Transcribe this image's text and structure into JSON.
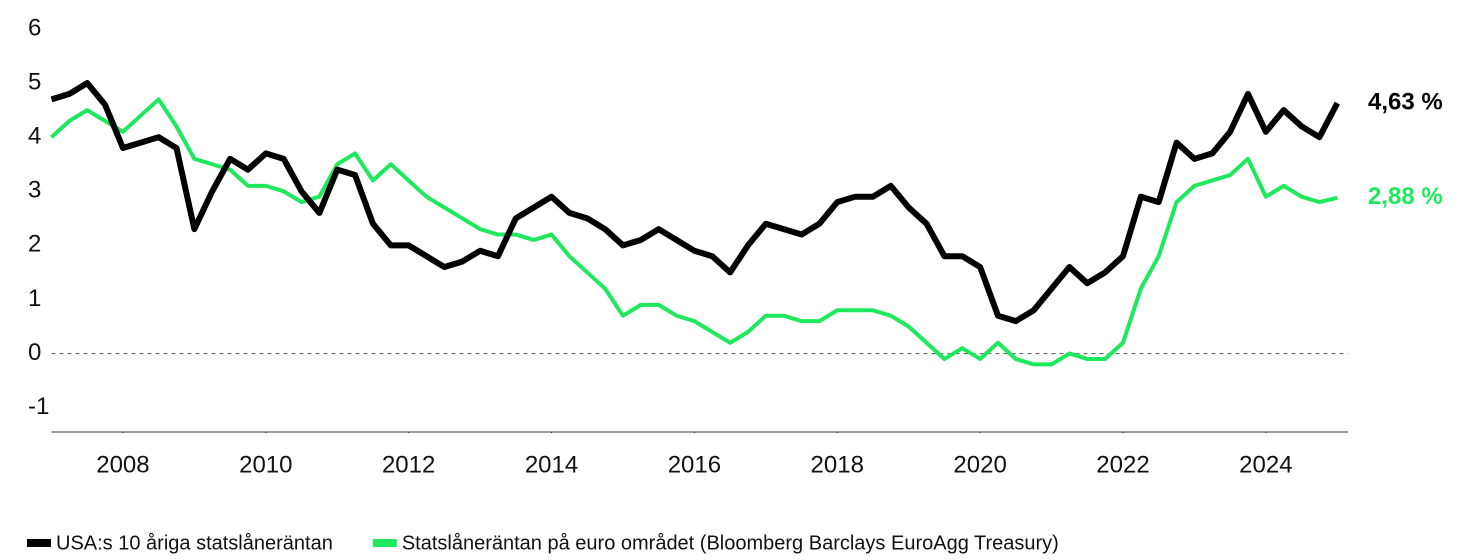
{
  "chart_data": {
    "type": "line",
    "x": [
      2007.0,
      2007.25,
      2007.5,
      2007.75,
      2008.0,
      2008.25,
      2008.5,
      2008.75,
      2009.0,
      2009.25,
      2009.5,
      2009.75,
      2010.0,
      2010.25,
      2010.5,
      2010.75,
      2011.0,
      2011.25,
      2011.5,
      2011.75,
      2012.0,
      2012.25,
      2012.5,
      2012.75,
      2013.0,
      2013.25,
      2013.5,
      2013.75,
      2014.0,
      2014.25,
      2014.5,
      2014.75,
      2015.0,
      2015.25,
      2015.5,
      2015.75,
      2016.0,
      2016.25,
      2016.5,
      2016.75,
      2017.0,
      2017.25,
      2017.5,
      2017.75,
      2018.0,
      2018.25,
      2018.5,
      2018.75,
      2019.0,
      2019.25,
      2019.5,
      2019.75,
      2020.0,
      2020.25,
      2020.5,
      2020.75,
      2021.0,
      2021.25,
      2021.5,
      2021.75,
      2022.0,
      2022.25,
      2022.5,
      2022.75,
      2023.0,
      2023.25,
      2023.5,
      2023.75,
      2024.0,
      2024.25,
      2024.5,
      2024.75,
      2025.0
    ],
    "series": [
      {
        "name": "USA:s 10 åriga statslåneräntan",
        "color": "#000000",
        "end_label": "4,63 %",
        "values": [
          4.7,
          4.8,
          5.0,
          4.6,
          3.8,
          3.9,
          4.0,
          3.8,
          2.3,
          3.0,
          3.6,
          3.4,
          3.7,
          3.6,
          3.0,
          2.6,
          3.4,
          3.3,
          2.4,
          2.0,
          2.0,
          1.8,
          1.6,
          1.7,
          1.9,
          1.8,
          2.5,
          2.7,
          2.9,
          2.6,
          2.5,
          2.3,
          2.0,
          2.1,
          2.3,
          2.1,
          1.9,
          1.8,
          1.5,
          2.0,
          2.4,
          2.3,
          2.2,
          2.4,
          2.8,
          2.9,
          2.9,
          3.1,
          2.7,
          2.4,
          1.8,
          1.8,
          1.6,
          0.7,
          0.6,
          0.8,
          1.2,
          1.6,
          1.3,
          1.5,
          1.8,
          2.9,
          2.8,
          3.9,
          3.6,
          3.7,
          4.1,
          4.8,
          4.1,
          4.5,
          4.2,
          4.0,
          4.63
        ]
      },
      {
        "name": "Statslåneräntan på euro området (Bloomberg Barclays EuroAgg Treasury)",
        "color": "#1ee85c",
        "end_label": "2,88 %",
        "values": [
          4.0,
          4.3,
          4.5,
          4.3,
          4.1,
          4.4,
          4.7,
          4.2,
          3.6,
          3.5,
          3.4,
          3.1,
          3.1,
          3.0,
          2.8,
          2.9,
          3.5,
          3.7,
          3.2,
          3.5,
          3.2,
          2.9,
          2.7,
          2.5,
          2.3,
          2.2,
          2.2,
          2.1,
          2.2,
          1.8,
          1.5,
          1.2,
          0.7,
          0.9,
          0.9,
          0.7,
          0.6,
          0.4,
          0.2,
          0.4,
          0.7,
          0.7,
          0.6,
          0.6,
          0.8,
          0.8,
          0.8,
          0.7,
          0.5,
          0.2,
          -0.1,
          0.1,
          -0.1,
          0.2,
          -0.1,
          -0.2,
          -0.2,
          0.0,
          -0.1,
          -0.1,
          0.2,
          1.2,
          1.8,
          2.8,
          3.1,
          3.2,
          3.3,
          3.6,
          2.9,
          3.1,
          2.9,
          2.8,
          2.88
        ]
      }
    ],
    "xlim": [
      2007,
      2025.15
    ],
    "xticks": [
      2008,
      2010,
      2012,
      2014,
      2016,
      2018,
      2020,
      2022,
      2024
    ],
    "ylim": [
      -1.45,
      6
    ],
    "yticks": [
      -1,
      0,
      1,
      2,
      3,
      4,
      5,
      6
    ],
    "zero_line": true,
    "legend": "bottom-left"
  }
}
